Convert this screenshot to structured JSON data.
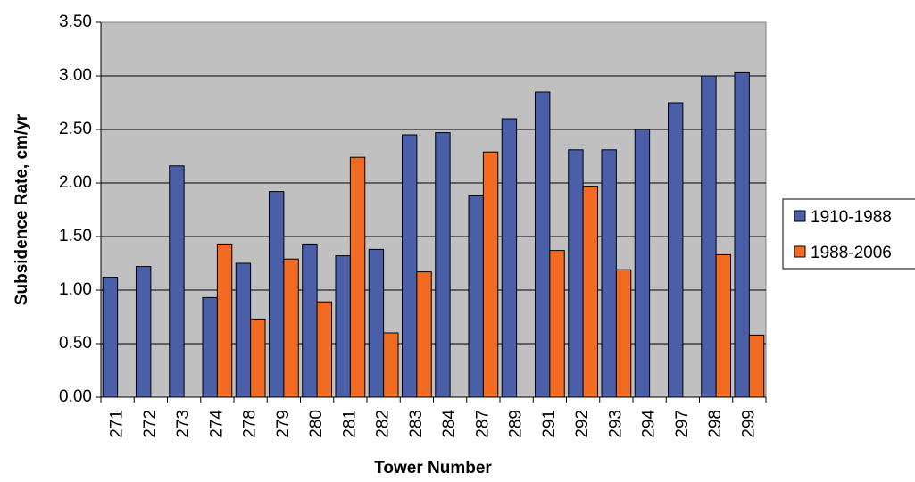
{
  "chart_data": {
    "type": "bar",
    "title": "",
    "xlabel": "Tower Number",
    "ylabel": "Subsidence Rate, cm/yr",
    "ylim": [
      0,
      3.5
    ],
    "yticks": [
      "0.00",
      "0.50",
      "1.00",
      "1.50",
      "2.00",
      "2.50",
      "3.00",
      "3.50"
    ],
    "grid": true,
    "legend_position": "right",
    "categories": [
      "271",
      "272",
      "273",
      "274",
      "278",
      "279",
      "280",
      "281",
      "282",
      "283",
      "284",
      "287",
      "289",
      "291",
      "292",
      "293",
      "294",
      "297",
      "298",
      "299"
    ],
    "series": [
      {
        "name": "1910-1988",
        "color": "#4A5FA8",
        "values": [
          1.12,
          1.22,
          2.16,
          0.93,
          1.25,
          1.92,
          1.43,
          1.32,
          1.38,
          2.45,
          2.47,
          1.88,
          2.6,
          2.85,
          2.31,
          2.31,
          2.5,
          2.75,
          3.0,
          3.03
        ]
      },
      {
        "name": "1988-2006",
        "color": "#F26B21",
        "values": [
          null,
          null,
          null,
          1.43,
          0.73,
          1.29,
          0.89,
          2.24,
          0.6,
          1.17,
          null,
          2.29,
          null,
          1.37,
          1.97,
          1.19,
          null,
          null,
          1.33,
          0.58
        ]
      }
    ],
    "colors": {
      "plot_background": "#C0C0C0",
      "gridline": "#000000"
    }
  }
}
